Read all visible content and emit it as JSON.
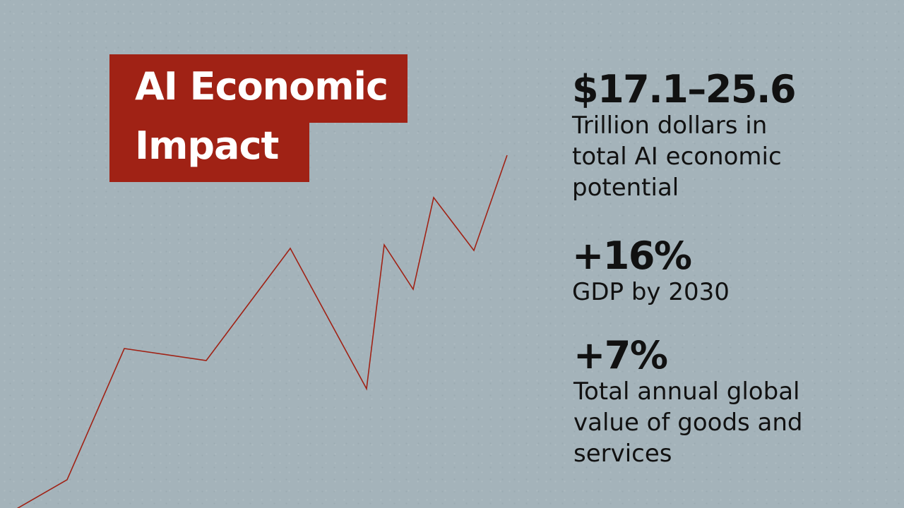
{
  "slide": {
    "title_line_1": "AI Economic",
    "title_line_2": "Impact",
    "accent_color": "#a02215",
    "background_color": "#a4b3ba",
    "line_color": "#a02215"
  },
  "stats": [
    {
      "value": "$17.1–25.6",
      "description": "Trillion dollars in total AI economic potential"
    },
    {
      "value": "+16%",
      "description": "GDP by 2030"
    },
    {
      "value": "+7%",
      "description": "Total annual global value of goods and services"
    }
  ]
}
